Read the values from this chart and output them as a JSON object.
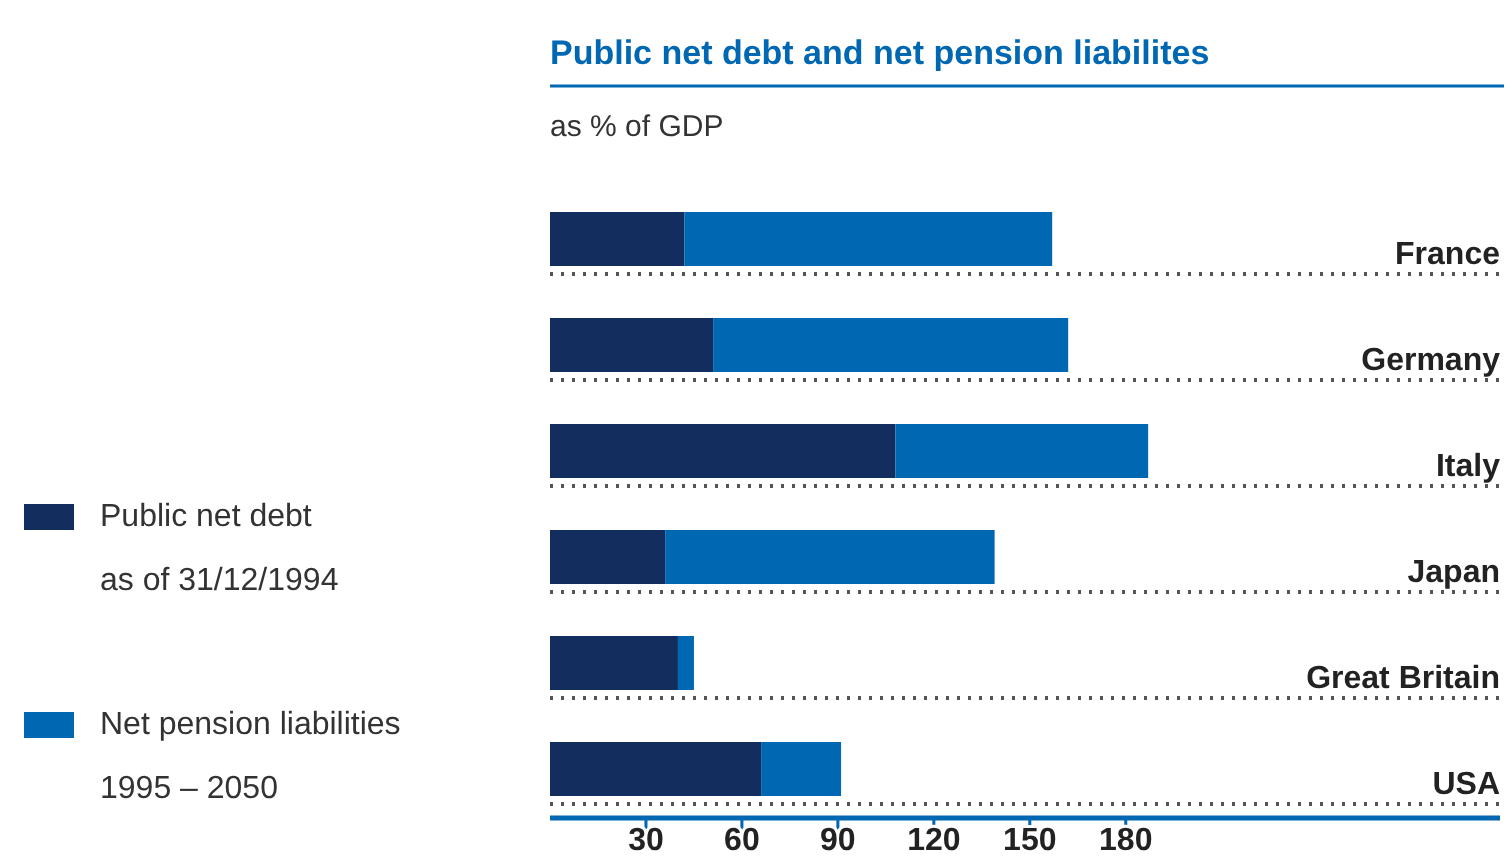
{
  "chart_data": {
    "type": "bar",
    "orientation": "horizontal",
    "stacked": true,
    "title": "Public net debt and net pension liabilites",
    "subtitle": "as % of GDP",
    "categories": [
      "France",
      "Germany",
      "Italy",
      "Japan",
      "Great Britain",
      "USA"
    ],
    "series": [
      {
        "name": "Public net debt\nas of 31/12/1994",
        "color": "#132d5e",
        "values": [
          42,
          51,
          108,
          36,
          40,
          66
        ]
      },
      {
        "name": "Net pension liabilities\n1995 – 2050",
        "color": "#0068b3",
        "values": [
          115,
          111,
          79,
          103,
          5,
          25
        ]
      }
    ],
    "xlim": [
      0,
      297
    ],
    "xticks": [
      30,
      60,
      90,
      120,
      150,
      180
    ],
    "legend": "left",
    "grid": false
  }
}
